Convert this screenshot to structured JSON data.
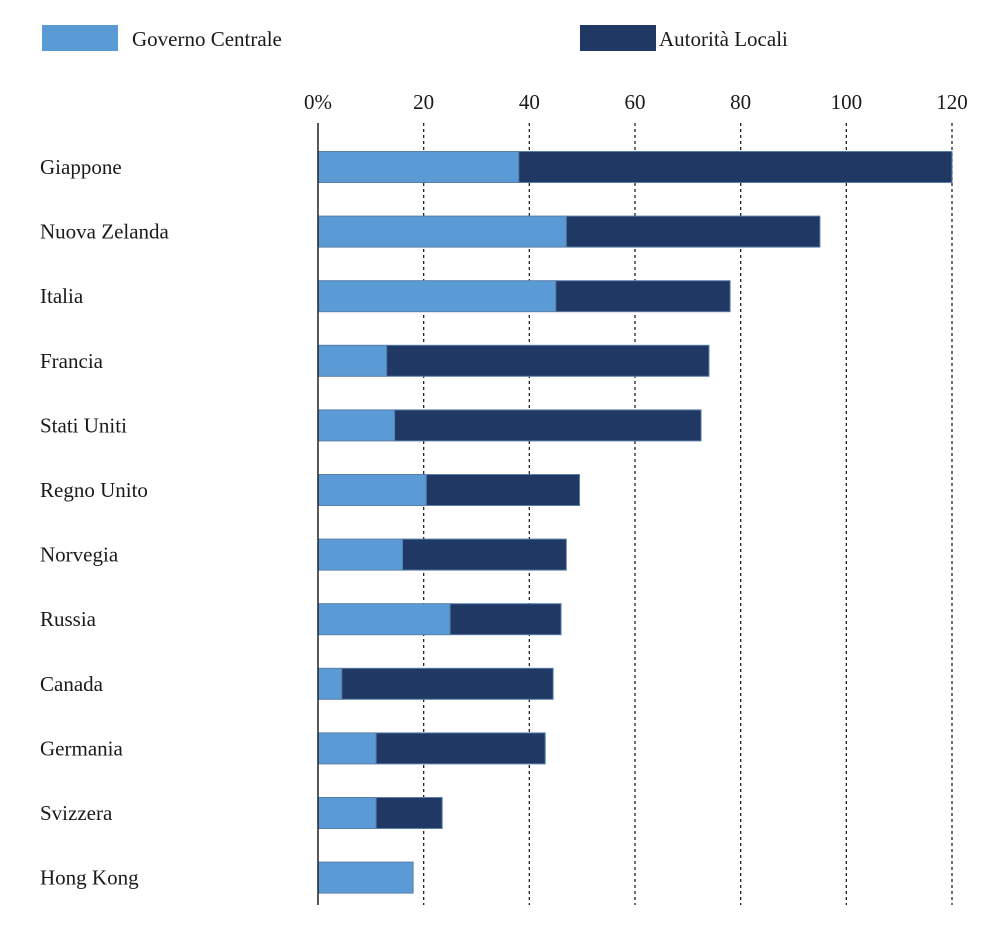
{
  "chart_data": {
    "type": "bar",
    "orientation": "horizontal",
    "stacked": true,
    "legend_position": "top",
    "xlim": [
      0,
      120
    ],
    "xticks": [
      0,
      20,
      40,
      60,
      80,
      100,
      120
    ],
    "xtick_labels": [
      "0%",
      "20",
      "40",
      "60",
      "80",
      "100",
      "120"
    ],
    "grid": "vertical dashed",
    "categories": [
      "Giappone",
      "Nuova Zelanda",
      "Italia",
      "Francia",
      "Stati Uniti",
      "Regno Unito",
      "Norvegia",
      "Russia",
      "Canada",
      "Germania",
      "Svizzera",
      "Hong Kong"
    ],
    "series": [
      {
        "name": "Governo Centrale",
        "color": "#5b9bd5",
        "values": [
          38,
          47,
          45,
          13,
          14.5,
          20.5,
          16,
          25,
          4.5,
          11,
          11,
          18
        ]
      },
      {
        "name": "Autorità Locali",
        "color": "#1f3864",
        "values": [
          82,
          48,
          33,
          61,
          58,
          29,
          31,
          21,
          40,
          32,
          12.5,
          0
        ]
      }
    ]
  }
}
